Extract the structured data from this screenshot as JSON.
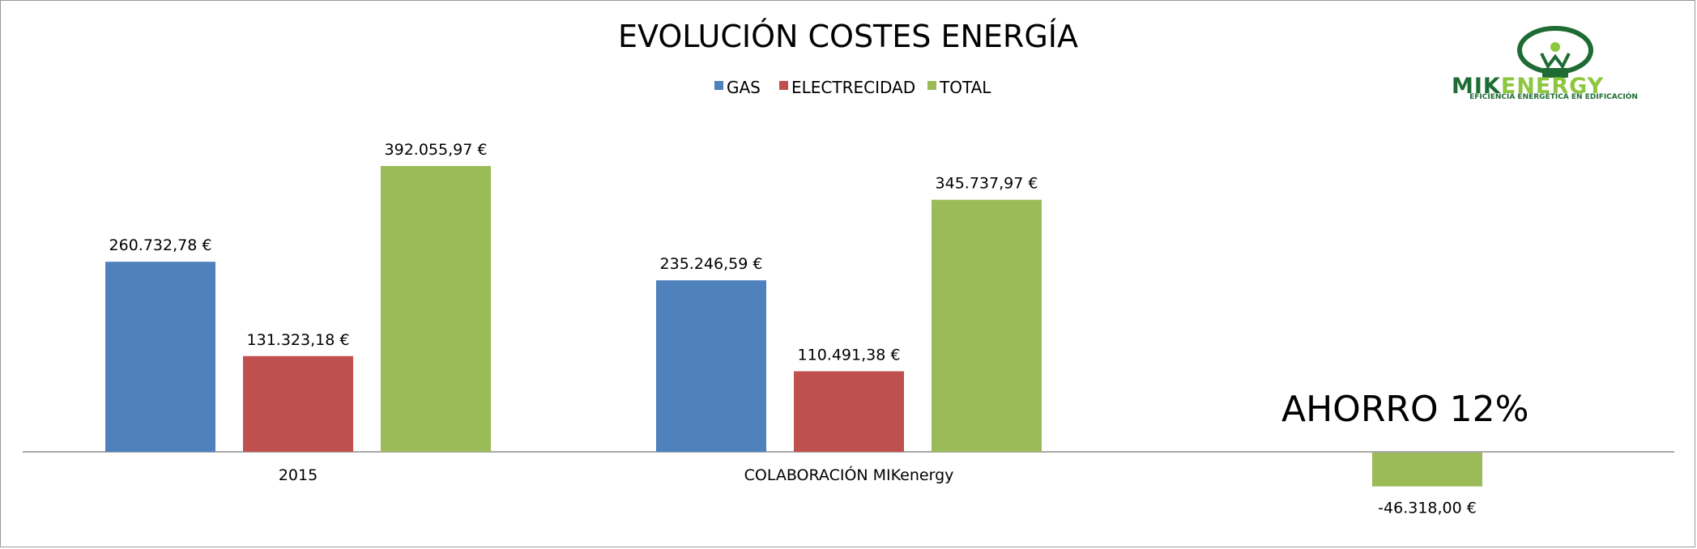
{
  "chart_data": {
    "type": "bar",
    "title": "EVOLUCIÓN COSTES ENERGÍA",
    "categories": [
      "2015",
      "COLABORACIÓN MIKenergy",
      ""
    ],
    "series": [
      {
        "name": "GAS",
        "color": "#4F81BD",
        "values": [
          260732.78,
          235246.59,
          null
        ],
        "labels": [
          "260.732,78 €",
          "235.246,59 €",
          ""
        ]
      },
      {
        "name": "ELECTRECIDAD",
        "color": "#C0504D",
        "values": [
          131323.18,
          110491.38,
          null
        ],
        "labels": [
          "131.323,18 €",
          "110.491,38 €",
          ""
        ]
      },
      {
        "name": "TOTAL",
        "color": "#9BBB59",
        "values": [
          392055.97,
          345737.97,
          -46318.0
        ],
        "labels": [
          "392.055,97 €",
          "345.737,97 €",
          "-46.318,00 €"
        ]
      }
    ],
    "ylim": [
      -100000,
      440000
    ],
    "grid": false,
    "legend": "top",
    "annotation": "AHORRO 12%"
  },
  "logo": {
    "brand_part1": "MIK",
    "brand_part2": "ENERGY",
    "tagline": "EFICIENCIA ENERGÉTICA EN EDIFICACIÓN",
    "colors": {
      "dark": "#1E6B33",
      "light": "#8DC63F"
    }
  }
}
